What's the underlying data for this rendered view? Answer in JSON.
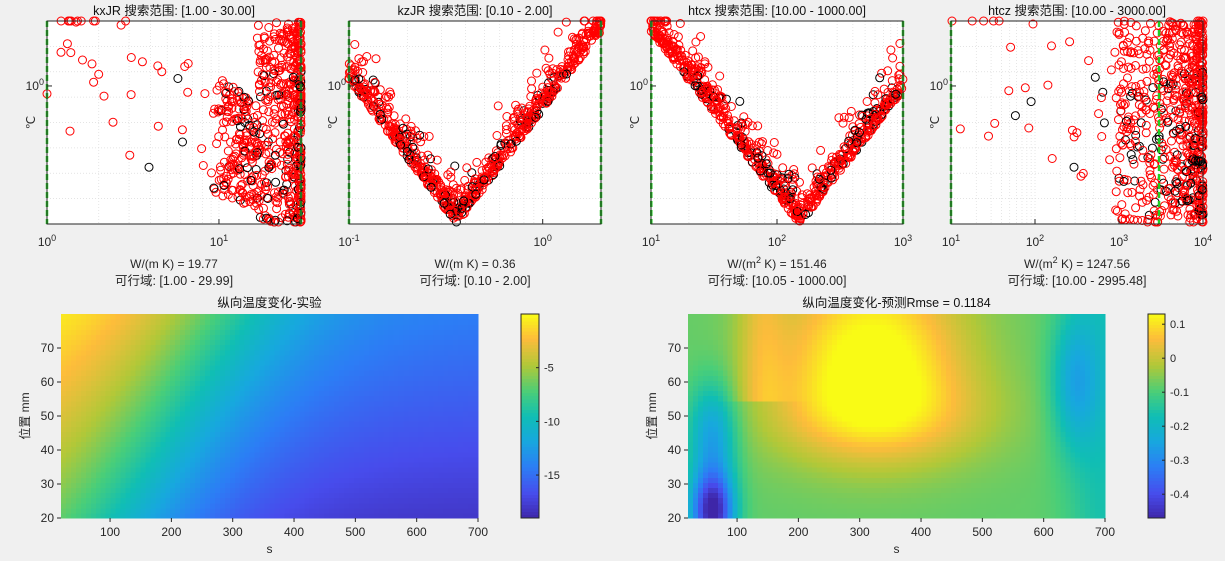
{
  "colors": {
    "background": "#f0f0f0",
    "feasible": "#ff0000",
    "infeasible": "#000000",
    "bounds": "#22cc22"
  },
  "chart_data": [
    {
      "type": "scatter",
      "title": "kxJR 搜索范围: [1.00 - 30.00]",
      "xscale": "log",
      "xlim": [
        1,
        30
      ],
      "xticks": [
        "10^0",
        "10^1"
      ],
      "ylabel": "℃",
      "yscale": "log",
      "yticks": [
        "10^0"
      ],
      "xlabel": "W/(m K) = 19.77",
      "feasible_label": "可行域: [1.00 - 29.99]",
      "bounds": [
        1,
        29.99
      ],
      "best": 19.77,
      "pattern": "right",
      "grid": true
    },
    {
      "type": "scatter",
      "title": "kzJR 搜索范围: [0.10 - 2.00]",
      "xscale": "log",
      "xlim": [
        0.1,
        2
      ],
      "xticks": [
        "10^-1",
        "10^0"
      ],
      "ylabel": "℃",
      "yscale": "log",
      "yticks": [
        "10^0"
      ],
      "xlabel": "W/(m K) = 0.36",
      "feasible_label": "可行域: [0.10 - 2.00]",
      "bounds": [
        0.1,
        2
      ],
      "best": 0.36,
      "pattern": "v",
      "grid": true
    },
    {
      "type": "scatter",
      "title": "htcx 搜索范围: [10.00 - 1000.00]",
      "xscale": "log",
      "xlim": [
        10,
        1000
      ],
      "xticks": [
        "10^1",
        "10^2",
        "10^3"
      ],
      "ylabel": "℃",
      "yscale": "log",
      "yticks": [
        "10^0"
      ],
      "xlabel": "W/(m^2 K) = 151.46",
      "feasible_label": "可行域: [10.05 - 1000.00]",
      "bounds": [
        10.05,
        1000
      ],
      "best": 151.46,
      "pattern": "v",
      "grid": true
    },
    {
      "type": "scatter",
      "title": "htcz 搜索范围: [10.00 - 3000.00]",
      "xscale": "log",
      "xlim": [
        10,
        10000
      ],
      "xticks": [
        "10^1",
        "10^2",
        "10^3",
        "10^4"
      ],
      "ylabel": "℃",
      "yscale": "log",
      "yticks": [
        "10^0"
      ],
      "xlabel": "W/(m^2 K) = 1247.56",
      "feasible_label": "可行域: [10.00 - 2995.48]",
      "bounds": [
        10,
        2995.48
      ],
      "best": 1247.56,
      "pattern": "right",
      "grid": true
    },
    {
      "type": "heatmap",
      "title": "纵向温度变化-实验",
      "xlabel": "s",
      "ylabel": "位置 mm",
      "xlim": [
        20,
        700
      ],
      "ylim": [
        20,
        80
      ],
      "xticks": [
        100,
        200,
        300,
        400,
        500,
        600,
        700
      ],
      "yticks": [
        20,
        30,
        40,
        50,
        60,
        70
      ],
      "clim": [
        -19,
        0
      ],
      "colorbar_ticks": [
        -5,
        -10,
        -15
      ],
      "colormap": "parula"
    },
    {
      "type": "heatmap",
      "title": "纵向温度变化-预测Rmse = 0.1184",
      "xlabel": "s",
      "ylabel": "位置 mm",
      "xlim": [
        20,
        700
      ],
      "ylim": [
        20,
        80
      ],
      "xticks": [
        100,
        200,
        300,
        400,
        500,
        600,
        700
      ],
      "yticks": [
        20,
        30,
        40,
        50,
        60,
        70
      ],
      "clim": [
        -0.47,
        0.13
      ],
      "colorbar_ticks": [
        0.1,
        0,
        -0.1,
        -0.2,
        -0.3,
        -0.4
      ],
      "colormap": "parula"
    }
  ]
}
